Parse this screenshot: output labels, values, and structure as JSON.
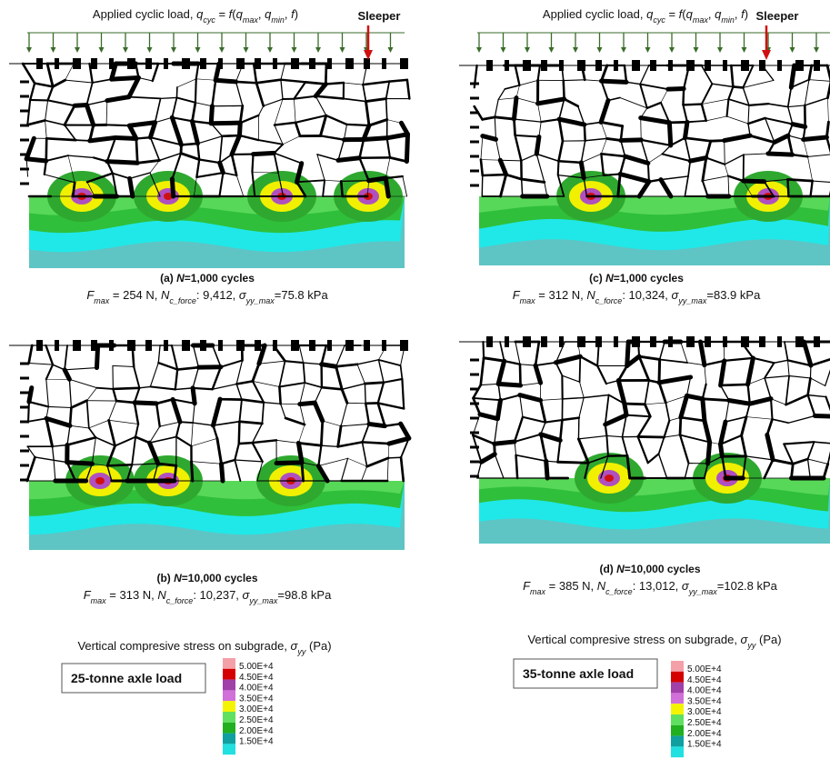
{
  "load_labels": [
    [
      {
        "text": "Applied cyclic load,  "
      },
      {
        "text": "q",
        "italic": true
      },
      {
        "text": "cyc",
        "sub": true,
        "italic": true
      },
      {
        "text": " = "
      },
      {
        "text": "f",
        "italic": true
      },
      {
        "text": "("
      },
      {
        "text": "q",
        "italic": true
      },
      {
        "text": "max",
        "sub": true,
        "italic": true
      },
      {
        "text": ", "
      },
      {
        "text": "q",
        "italic": true
      },
      {
        "text": "min",
        "sub": true,
        "italic": true
      },
      {
        "text": ", "
      },
      {
        "text": "f",
        "italic": true
      },
      {
        "text": ")"
      }
    ],
    [
      {
        "text": "Applied cyclic load,  "
      },
      {
        "text": "q",
        "italic": true
      },
      {
        "text": "cyc",
        "sub": true,
        "italic": true
      },
      {
        "text": " = "
      },
      {
        "text": "f",
        "italic": true
      },
      {
        "text": "("
      },
      {
        "text": "q",
        "italic": true
      },
      {
        "text": "max",
        "sub": true,
        "italic": true
      },
      {
        "text": ", "
      },
      {
        "text": "q",
        "italic": true
      },
      {
        "text": "min",
        "sub": true,
        "italic": true
      },
      {
        "text": ", "
      },
      {
        "text": "f",
        "italic": true
      },
      {
        "text": ")"
      }
    ]
  ],
  "sleeper_labels": [
    "Sleeper",
    "Sleeper"
  ],
  "panels": [
    {
      "caption": [
        {
          "text": "(a) "
        },
        {
          "text": "N",
          "italic": true
        },
        {
          "text": "=1,000 cycles"
        }
      ],
      "metrics": [
        {
          "text": "F",
          "italic": true
        },
        {
          "text": "max",
          "sub": true,
          "italic": true
        },
        {
          "text": " = 254 N,  "
        },
        {
          "text": "N",
          "italic": true
        },
        {
          "text": "c_force",
          "sub": true,
          "italic": true
        },
        {
          "text": ": 9,412,  "
        },
        {
          "text": "σ",
          "italic": true
        },
        {
          "text": "yy_max",
          "sub": true,
          "italic": true
        },
        {
          "text": "=75.8 kPa"
        }
      ]
    },
    {
      "caption": [
        {
          "text": "(b) "
        },
        {
          "text": "N",
          "italic": true
        },
        {
          "text": "=10,000 cycles"
        }
      ],
      "metrics": [
        {
          "text": "F",
          "italic": true
        },
        {
          "text": "max",
          "sub": true,
          "italic": true
        },
        {
          "text": " = 313 N,  "
        },
        {
          "text": "N",
          "italic": true
        },
        {
          "text": "c_force",
          "sub": true,
          "italic": true
        },
        {
          "text": ": 10,237,  "
        },
        {
          "text": "σ",
          "italic": true
        },
        {
          "text": "yy_max",
          "sub": true,
          "italic": true
        },
        {
          "text": "=98.8 kPa"
        }
      ]
    },
    {
      "caption": [
        {
          "text": "(c) "
        },
        {
          "text": "N",
          "italic": true
        },
        {
          "text": "=1,000 cycles"
        }
      ],
      "metrics": [
        {
          "text": "F",
          "italic": true
        },
        {
          "text": "max",
          "sub": true,
          "italic": true
        },
        {
          "text": " = 312 N,  "
        },
        {
          "text": "N",
          "italic": true
        },
        {
          "text": "c_force",
          "sub": true,
          "italic": true
        },
        {
          "text": ": 10,324,  "
        },
        {
          "text": "σ",
          "italic": true
        },
        {
          "text": "yy_max",
          "sub": true,
          "italic": true
        },
        {
          "text": "=83.9 kPa"
        }
      ]
    },
    {
      "caption": [
        {
          "text": "(d) "
        },
        {
          "text": "N",
          "italic": true
        },
        {
          "text": "=10,000 cycles"
        }
      ],
      "metrics": [
        {
          "text": "F",
          "italic": true
        },
        {
          "text": "max",
          "sub": true,
          "italic": true
        },
        {
          "text": " = 385 N,  "
        },
        {
          "text": "N",
          "italic": true
        },
        {
          "text": "c_force",
          "sub": true,
          "italic": true
        },
        {
          "text": ": 13,012,  "
        },
        {
          "text": "σ",
          "italic": true
        },
        {
          "text": "yy_max",
          "sub": true,
          "italic": true
        },
        {
          "text": "=102.8 kPa"
        }
      ]
    }
  ],
  "legends": [
    {
      "title": [
        {
          "text": "Vertical compresive stress on subgrade, "
        },
        {
          "text": "σ",
          "italic": true
        },
        {
          "text": "yy",
          "sub": true,
          "italic": true
        },
        {
          "text": " (Pa)"
        }
      ],
      "axle_label": "25-tonne axle load",
      "values": [
        "5.00E+4",
        "4.50E+4",
        "4.00E+4",
        "3.50E+4",
        "3.00E+4",
        "2.50E+4",
        "2.00E+4",
        "1.50E+4"
      ]
    },
    {
      "title": [
        {
          "text": "Vertical compresive stress on subgrade, "
        },
        {
          "text": "σ",
          "italic": true
        },
        {
          "text": "yy",
          "sub": true,
          "italic": true
        },
        {
          "text": " (Pa)"
        }
      ],
      "axle_label": "35-tonne axle load",
      "values": [
        "5.00E+4",
        "4.50E+4",
        "4.00E+4",
        "3.50E+4",
        "3.00E+4",
        "2.50E+4",
        "2.00E+4",
        "1.50E+4"
      ]
    }
  ]
}
